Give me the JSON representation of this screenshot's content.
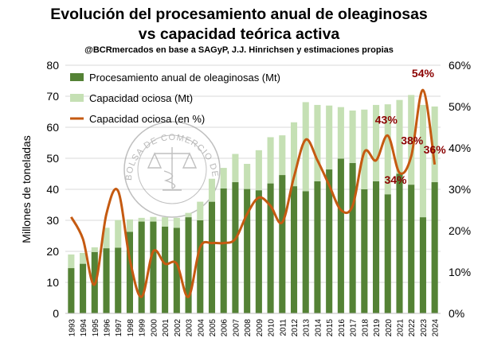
{
  "title": {
    "line1": "Evolución del procesamiento anual de oleaginosas",
    "line2": "vs capacidad teórica activa"
  },
  "subtitle": "@BCRmercados en base a SAGyP, J.J. Hinrichsen y estimaciones propias",
  "watermark": {
    "text": "BOLSA DE COMERCIO DE ROSARIO",
    "icon": "scales-of-justice-seal-icon"
  },
  "colors": {
    "processing": "#548235",
    "idle": "#c5e0b4",
    "idle_pct_line": "#c55a11",
    "pct_label": "#8b0000"
  },
  "chart_data": {
    "type": "bar",
    "stacked": true,
    "ylabel": "Millones de toneladas",
    "ylim": [
      0,
      80
    ],
    "yticks": [
      "0",
      "10",
      "20",
      "30",
      "40",
      "50",
      "60",
      "70",
      "80"
    ],
    "y2lim": [
      0,
      0.6
    ],
    "y2ticks": [
      "0%",
      "10%",
      "20%",
      "30%",
      "40%",
      "50%",
      "60%"
    ],
    "grid": true,
    "legend_position": "top-left",
    "categories": [
      "1993",
      "1994",
      "1995",
      "1996",
      "1997",
      "1998",
      "1999",
      "2000",
      "2001",
      "2002",
      "2003",
      "2004",
      "2005",
      "2006",
      "2007",
      "2008",
      "2009",
      "2010",
      "2011",
      "2012",
      "2013",
      "2014",
      "2015",
      "2016",
      "2017",
      "2018",
      "2019",
      "2020",
      "2021",
      "2022",
      "2023",
      "2024"
    ],
    "series": [
      {
        "name": "Procesamiento anual de oleaginosas (Mt)",
        "type": "bar",
        "axis": "left",
        "values": [
          14.6,
          16.0,
          19.8,
          21.0,
          21.2,
          26.3,
          29.6,
          29.6,
          28.0,
          27.6,
          31.0,
          30.0,
          36.0,
          40.3,
          42.3,
          40.1,
          39.7,
          41.9,
          44.6,
          41.0,
          39.4,
          42.6,
          46.4,
          49.9,
          48.5,
          40.0,
          42.6,
          38.4,
          45.0,
          41.5,
          31.0,
          42.3
        ]
      },
      {
        "name": "Capacidad ociosa (Mt)",
        "type": "bar",
        "axis": "left",
        "values": [
          4.4,
          3.5,
          1.5,
          6.6,
          8.9,
          4.0,
          1.2,
          1.5,
          3.0,
          3.2,
          1.4,
          6.0,
          7.4,
          6.6,
          9.1,
          8.1,
          12.9,
          14.9,
          12.8,
          20.6,
          28.7,
          24.6,
          20.6,
          16.6,
          16.9,
          25.7,
          24.6,
          29.0,
          23.8,
          28.9,
          36.2,
          24.4
        ]
      },
      {
        "name": "Capacidad ociosa (en %)",
        "type": "line",
        "axis": "right",
        "values": [
          0.233,
          0.18,
          0.07,
          0.24,
          0.296,
          0.13,
          0.04,
          0.15,
          0.12,
          0.12,
          0.04,
          0.16,
          0.17,
          0.17,
          0.18,
          0.24,
          0.28,
          0.26,
          0.22,
          0.33,
          0.42,
          0.37,
          0.31,
          0.25,
          0.26,
          0.39,
          0.37,
          0.43,
          0.34,
          0.38,
          0.54,
          0.36
        ]
      }
    ],
    "annotations": [
      {
        "x": "2020",
        "label": "43%"
      },
      {
        "x": "2021",
        "label": "34%"
      },
      {
        "x": "2022",
        "label": "38%"
      },
      {
        "x": "2023",
        "label": "54%"
      },
      {
        "x": "2024",
        "label": "36%"
      }
    ]
  }
}
